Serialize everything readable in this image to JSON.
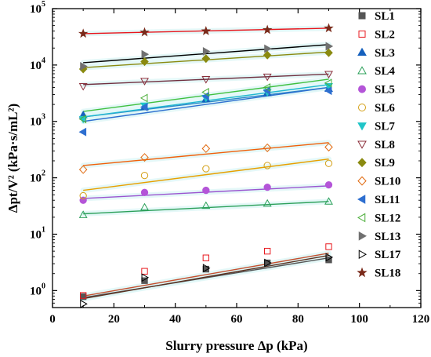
{
  "chart_data": {
    "type": "scatter",
    "xlabel": "Slurry pressure Δp (kPa)",
    "ylabel": "Δpt/V² (kPa·s/mL²)",
    "xlim": [
      0,
      120
    ],
    "ylim": [
      0.5,
      100000
    ],
    "yscale": "log",
    "x_ticks": [
      "0",
      "20",
      "40",
      "60",
      "80",
      "100",
      "120"
    ],
    "y_ticks": [
      {
        "value": 1,
        "label": "10",
        "exp": "0"
      },
      {
        "value": 10,
        "label": "10",
        "exp": "1"
      },
      {
        "value": 100,
        "label": "10",
        "exp": "2"
      },
      {
        "value": 1000,
        "label": "10",
        "exp": "3"
      },
      {
        "value": 10000,
        "label": "10",
        "exp": "4"
      },
      {
        "value": 100000,
        "label": "10",
        "exp": "5"
      }
    ],
    "legend_position": "right",
    "x": [
      10,
      30,
      50,
      70,
      90
    ],
    "series": [
      {
        "name": "SL1",
        "marker": "square",
        "filled": true,
        "color": "#555555",
        "values": [
          0.78,
          1.5,
          2.4,
          3.1,
          3.5
        ],
        "fit": [
          0.75,
          3.8
        ]
      },
      {
        "name": "SL2",
        "marker": "square",
        "filled": false,
        "color": "#e8191f",
        "values": [
          0.82,
          2.2,
          3.8,
          5.0,
          6.0
        ],
        "fit": [
          0.8,
          4.6
        ]
      },
      {
        "name": "SL3",
        "marker": "triangle-up",
        "filled": true,
        "color": "#1560bd",
        "values": [
          1300,
          1800,
          2500,
          3200,
          3800
        ],
        "fit": [
          1200,
          4000
        ]
      },
      {
        "name": "SL4",
        "marker": "triangle-up",
        "filled": false,
        "color": "#2ca05a",
        "values": [
          22,
          30,
          32,
          35,
          38
        ],
        "fit": [
          23,
          38
        ]
      },
      {
        "name": "SL5",
        "marker": "circle",
        "filled": true,
        "color": "#b455d8",
        "values": [
          40,
          55,
          60,
          68,
          75
        ],
        "fit": [
          43,
          72
        ]
      },
      {
        "name": "SL6",
        "marker": "circle",
        "filled": false,
        "color": "#d4a017",
        "values": [
          48,
          110,
          145,
          165,
          180
        ],
        "fit": [
          60,
          215
        ]
      },
      {
        "name": "SL7",
        "marker": "triangle-down",
        "filled": true,
        "color": "#20c5c8",
        "values": [
          1100,
          1900,
          2600,
          3300,
          4200
        ],
        "fit": [
          1200,
          4500
        ]
      },
      {
        "name": "SL8",
        "marker": "triangle-down",
        "filled": false,
        "color": "#8b2e3a",
        "values": [
          4200,
          5200,
          5600,
          6200,
          6900
        ],
        "fit": [
          4500,
          6900
        ]
      },
      {
        "name": "SL9",
        "marker": "diamond",
        "filled": true,
        "color": "#8a8a10",
        "values": [
          8500,
          11500,
          13000,
          15000,
          16500
        ],
        "fit": [
          9000,
          17000
        ]
      },
      {
        "name": "SL10",
        "marker": "diamond",
        "filled": false,
        "color": "#e06a10",
        "values": [
          140,
          230,
          330,
          340,
          350
        ],
        "fit": [
          165,
          420
        ]
      },
      {
        "name": "SL11",
        "marker": "triangle-left",
        "filled": true,
        "color": "#2e6fd0",
        "values": [
          650,
          1800,
          2800,
          3500,
          3500
        ],
        "fit": [
          1000,
          4000
        ]
      },
      {
        "name": "SL12",
        "marker": "triangle-left",
        "filled": false,
        "color": "#4cae3a",
        "values": [
          1100,
          2600,
          3300,
          4000,
          4800
        ],
        "fit": [
          1500,
          5600
        ]
      },
      {
        "name": "SL13",
        "marker": "triangle-right",
        "filled": true,
        "color": "#707070",
        "values": [
          9500,
          15500,
          17500,
          19500,
          21500
        ],
        "fit": [
          11000,
          23000
        ]
      },
      {
        "name": "SL17",
        "marker": "triangle-right",
        "filled": false,
        "color": "#000000",
        "values": [
          0.58,
          1.7,
          2.5,
          3.1,
          3.9
        ],
        "fit": [
          0.72,
          4.2
        ]
      },
      {
        "name": "SL18",
        "marker": "star",
        "filled": true,
        "color": "#7a2a1a",
        "values": [
          36000,
          38000,
          40000,
          42000,
          45000
        ],
        "fit": [
          36000,
          45000
        ]
      }
    ],
    "fit_colors": {
      "SL1": "#555555",
      "SL2": "#c45030",
      "SL3": "#2a86c8",
      "SL4": "#2ca05a",
      "SL5": "#9a55d0",
      "SL6": "#e8a000",
      "SL7": "#20b8d0",
      "SL8": "#703040",
      "SL9": "#8a8a10",
      "SL10": "#f0600a",
      "SL11": "#2e6fd0",
      "SL12": "#40c040",
      "SL13": "#000000",
      "SL17": "#5a3020",
      "SL18": "#e8151c"
    },
    "fit_highlight_color": "#dff7f7",
    "grid": false
  }
}
